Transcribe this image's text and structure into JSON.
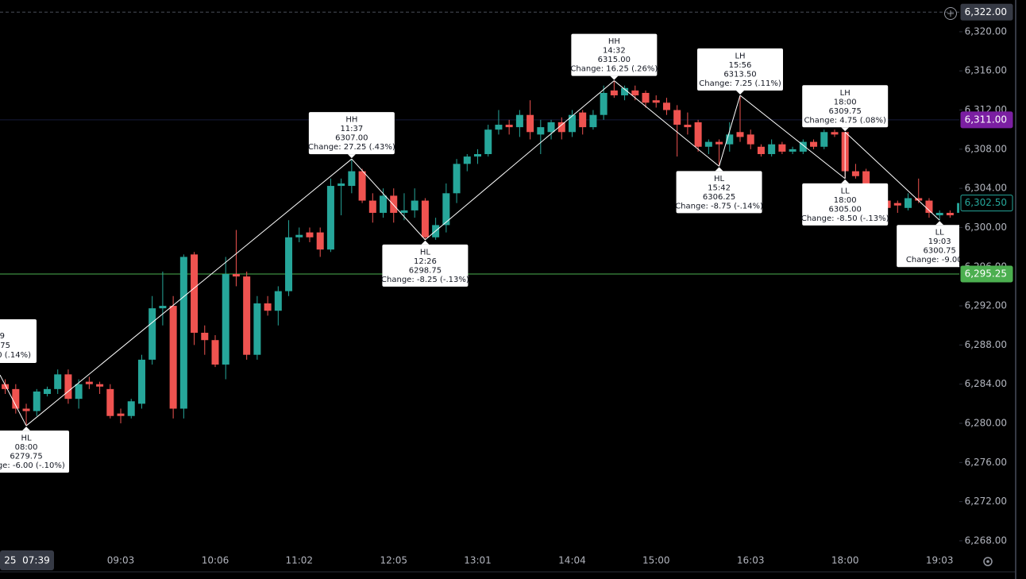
{
  "chart_data": {
    "type": "candlestick",
    "categories": [
      null,
      null,
      null,
      null,
      null,
      null,
      null,
      null,
      null,
      null,
      null,
      "09:03",
      null,
      null,
      null,
      null,
      null,
      null,
      null,
      null,
      "10:06",
      null,
      null,
      null,
      null,
      null,
      null,
      null,
      "11:02",
      null,
      null,
      null,
      null,
      null,
      null,
      null,
      null,
      "12:05",
      null,
      null,
      null,
      null,
      null,
      null,
      null,
      "13:01",
      null,
      null,
      null,
      null,
      null,
      null,
      null,
      null,
      "14:04",
      null,
      null,
      null,
      null,
      null,
      null,
      null,
      "15:00",
      null,
      null,
      null,
      null,
      null,
      null,
      null,
      null,
      "16:03",
      null,
      null,
      null,
      null,
      null,
      null,
      null,
      null,
      "18:00",
      null,
      null,
      null,
      null,
      null,
      null,
      null,
      null,
      "19:03",
      null,
      null
    ],
    "open": [
      6284,
      6283.5,
      6281.5,
      6281.25,
      6283,
      6283.5,
      6285,
      6282.5,
      6284.25,
      6284,
      6283.5,
      6281,
      6280.75,
      6282,
      6286.5,
      6291.75,
      6292,
      6281.5,
      6297.25,
      6289.25,
      6288.5,
      6286,
      6295.25,
      6295,
      6287,
      6292.25,
      6291.5,
      6293.5,
      6299,
      6299.5,
      6299.5,
      6297.75,
      6304.25,
      6304.25,
      6305.75,
      6302.75,
      6301.5,
      6303.25,
      6301.5,
      6301.75,
      6302.75,
      6299,
      6300.25,
      6303.5,
      6306.5,
      6307.25,
      6307.5,
      6310,
      6310.5,
      6310.25,
      6311.5,
      6309.5,
      6309.75,
      6310.75,
      6309.75,
      6311.75,
      6310.25,
      6311.5,
      6314,
      6313.5,
      6314,
      6313.75,
      6313,
      6312.75,
      6312,
      6310.5,
      6310.75,
      6308.25,
      6308.75,
      6308.5,
      6309.75,
      6309.5,
      6308.25,
      6307.5,
      6308.5,
      6307.75,
      6307.75,
      6308.75,
      6308.25,
      6309.75,
      6309.75,
      6305.75,
      6305.75,
      6304,
      6302.75,
      6302.5,
      6302,
      6303,
      6302.75,
      6301.25,
      6301.5,
      6301.5
    ],
    "high": [
      6284.5,
      6284,
      6282,
      6283.5,
      6283.75,
      6285.5,
      6285.5,
      6284.5,
      6284.75,
      6284.25,
      6284,
      6281.5,
      6282.5,
      6287,
      6293,
      6295.5,
      6293,
      6297.25,
      6297.5,
      6290,
      6289,
      6297,
      6299.75,
      6295.5,
      6293,
      6293,
      6294,
      6300.75,
      6300,
      6300,
      6300,
      6305,
      6305,
      6307,
      6306,
      6303.5,
      6304,
      6304,
      6303.5,
      6304,
      6303,
      6301,
      6304.5,
      6307,
      6307.5,
      6308,
      6310.5,
      6312,
      6311,
      6312,
      6313,
      6311,
      6311,
      6311.25,
      6312,
      6312,
      6312,
      6314.5,
      6315,
      6314.5,
      6314.5,
      6314,
      6313.5,
      6313.25,
      6312.5,
      6311.75,
      6311,
      6309,
      6309,
      6310.75,
      6313.5,
      6310,
      6308.5,
      6309,
      6308.75,
      6308.25,
      6309,
      6309,
      6310,
      6310,
      6309.75,
      6306.5,
      6306,
      6304.5,
      6303,
      6302.75,
      6303.5,
      6305,
      6303,
      6301.75,
      6301.75,
      6302.75
    ],
    "low": [
      6283,
      6281,
      6279.75,
      6280.75,
      6282.75,
      6283,
      6282,
      6281.5,
      6283.5,
      6283,
      6280.5,
      6280,
      6280.5,
      6281.5,
      6286,
      6290,
      6280.5,
      6280.5,
      6288,
      6287,
      6285.75,
      6284.5,
      6294,
      6286.5,
      6286.5,
      6291,
      6290,
      6293,
      6298.5,
      6298.5,
      6297,
      6297.5,
      6301.25,
      6303.5,
      6302.5,
      6300.5,
      6301,
      6300.5,
      6300.75,
      6301,
      6298.75,
      6298.75,
      6299.5,
      6302.5,
      6305.75,
      6306.5,
      6307.25,
      6309.5,
      6309.5,
      6309.25,
      6309,
      6307.5,
      6309,
      6309,
      6309.25,
      6309.5,
      6310,
      6311,
      6313.25,
      6313,
      6313,
      6312.25,
      6312.25,
      6311.5,
      6307.25,
      6309.5,
      6307.75,
      6307.5,
      6306.25,
      6307.75,
      6308.75,
      6308,
      6307.25,
      6307.25,
      6307.5,
      6307.5,
      6307.5,
      6308,
      6308,
      6309.25,
      6305,
      6305,
      6303.5,
      6303,
      6301.75,
      6301.5,
      6301.75,
      6302.5,
      6301,
      6300.75,
      6301,
      6301.25
    ],
    "close": [
      6283.5,
      6281.5,
      6281.25,
      6283.25,
      6283.5,
      6285,
      6282.5,
      6284,
      6284,
      6283.75,
      6280.75,
      6280.75,
      6282.25,
      6286.5,
      6291.75,
      6292,
      6281.5,
      6297,
      6289.25,
      6288.5,
      6286,
      6295.25,
      6295,
      6287,
      6292.25,
      6291.5,
      6293.5,
      6299,
      6299.25,
      6299,
      6297.75,
      6304.25,
      6304.5,
      6305.75,
      6302.75,
      6301.5,
      6303.25,
      6301.5,
      6301.75,
      6302.75,
      6299,
      6300.25,
      6303.5,
      6306.5,
      6307.25,
      6307.5,
      6310,
      6310.5,
      6310.25,
      6311.5,
      6309.75,
      6310.25,
      6310.75,
      6309.75,
      6311.5,
      6310.25,
      6311.5,
      6313.75,
      6313.5,
      6314.25,
      6313.5,
      6312.75,
      6312.75,
      6312,
      6310.5,
      6310.25,
      6308.25,
      6308.75,
      6308.5,
      6309.5,
      6309.25,
      6308.5,
      6307.5,
      6308.5,
      6307.75,
      6308,
      6308.75,
      6308.25,
      6309.75,
      6309.5,
      6305.75,
      6305.25,
      6304,
      6303.5,
      6302,
      6302.25,
      6303,
      6302.75,
      6301.5,
      6301.5,
      6301.25,
      6302.5
    ],
    "up_color": "#26a69a",
    "down_color": "#ef5350",
    "ylim": [
      6267.1,
      6323.24
    ],
    "yticks": [
      {
        "value": 6268,
        "label": "6,268.00"
      },
      {
        "value": 6272,
        "label": "6,272.00"
      },
      {
        "value": 6276,
        "label": "6,276.00"
      },
      {
        "value": 6280,
        "label": "6,280.00"
      },
      {
        "value": 6284,
        "label": "6,284.00"
      },
      {
        "value": 6288,
        "label": "6,288.00"
      },
      {
        "value": 6292,
        "label": "6,292.00"
      },
      {
        "value": 6296,
        "label": "6,296.00"
      },
      {
        "value": 6300,
        "label": "6,300.00"
      },
      {
        "value": 6304,
        "label": "6,304.00"
      },
      {
        "value": 6308,
        "label": "6,308.00"
      },
      {
        "value": 6312,
        "label": "6,312.00"
      },
      {
        "value": 6316,
        "label": "6,316.00"
      },
      {
        "value": 6320,
        "label": "6,320.00"
      }
    ],
    "swings": [
      {
        "kind": "HL",
        "time": "08:00",
        "price": 6279.75,
        "price_label": "6279.75",
        "change": "ange: -6.00 (-.10%)"
      },
      {
        "kind": "HH",
        "time": "11:37",
        "price": 6307,
        "price_label": "6307.00",
        "change": "Change: 27.25 (.43%)"
      },
      {
        "kind": "HL",
        "time": "12:26",
        "price": 6298.75,
        "price_label": "6298.75",
        "change": "Change: -8.25 (-.13%)"
      },
      {
        "kind": "HH",
        "time": "14:32",
        "price": 6315,
        "price_label": "6315.00",
        "change": "Change: 16.25 (.26%)"
      },
      {
        "kind": "HL",
        "time": "15:42",
        "price": 6306.25,
        "price_label": "6306.25",
        "change": "Change: -8.75 (-.14%)"
      },
      {
        "kind": "LH",
        "time": "15:56",
        "price": 6313.5,
        "price_label": "6313.50",
        "change": "Change: 7.25 (.11%)"
      },
      {
        "kind": "LL",
        "time": "18:00",
        "price": 6305,
        "price_label": "6305.00",
        "change": "Change: -8.50 (-.13%)"
      },
      {
        "kind": "LH",
        "time": "18:00",
        "price": 6309.75,
        "price_label": "6309.75",
        "change": "Change: 4.75 (.08%)"
      },
      {
        "kind": "LL",
        "time": "19:03",
        "price": 6300.75,
        "price_label": "6300.75",
        "change": "Change: -9.00 (-."
      }
    ],
    "partial_box": [
      "9",
      "75",
      "00 (.14%)"
    ],
    "price_tags": [
      {
        "value": 6322,
        "label": "6,322.00",
        "bg": "#363a45",
        "fg": "#ffffff",
        "line": "dashed",
        "line_color": "#4a4e59"
      },
      {
        "value": 6311,
        "label": "6,311.00",
        "bg": "#7b1fa2",
        "fg": "#ffffff",
        "line": "solid",
        "line_color": "#161a3a"
      },
      {
        "value": 6302.5,
        "label": "6,302.50",
        "bg": "#000000",
        "fg": "#26a69a",
        "line": "none",
        "line_color": "#26a69a"
      },
      {
        "value": 6295.25,
        "label": "6,295.25",
        "bg": "#4caf50",
        "fg": "#ffffff",
        "line": "solid",
        "line_color": "#4caf50"
      }
    ],
    "crosshair_time": "25  07:39"
  }
}
